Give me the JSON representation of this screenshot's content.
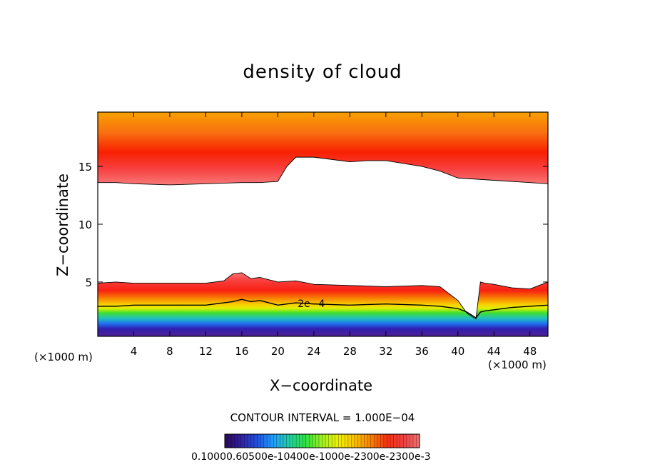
{
  "chart_data": {
    "type": "contour",
    "title": "density of cloud",
    "xlabel": "X−coordinate",
    "ylabel": "Z−coordinate",
    "x_unit_left": "(×1000 m)",
    "x_unit_right": "(×1000 m)",
    "xlim": [
      0,
      50
    ],
    "ylim": [
      0.3,
      19.7
    ],
    "x_ticks": [
      "4",
      "8",
      "12",
      "16",
      "20",
      "24",
      "28",
      "32",
      "36",
      "40",
      "44",
      "48"
    ],
    "x_tick_values": [
      4,
      8,
      12,
      16,
      20,
      24,
      28,
      32,
      36,
      40,
      44,
      48
    ],
    "y_ticks": [
      "5",
      "10",
      "15"
    ],
    "y_tick_values": [
      5,
      10,
      15
    ],
    "contour_label": "2e−4",
    "contour_interval_text": "CONTOUR INTERVAL = 1.000E−04",
    "colorbar_labels_text": "0.10000.60500e-10400e-1000e-2300e-2300e-3",
    "colorbar_stops": [
      "#2a0a5a",
      "#3020a0",
      "#2050e0",
      "#20a0ff",
      "#20d0a0",
      "#30e040",
      "#a0f020",
      "#f0f000",
      "#f8c000",
      "#f88000",
      "#f83010",
      "#f04040",
      "#f07070"
    ],
    "upper_cloud": {
      "x": [
        0,
        2,
        4,
        8,
        12,
        16,
        18,
        20,
        21,
        22,
        24,
        28,
        30,
        32,
        36,
        38,
        40,
        44,
        48,
        50
      ],
      "base_km": [
        13.6,
        13.6,
        13.5,
        13.4,
        13.5,
        13.6,
        13.6,
        13.7,
        15.0,
        15.8,
        15.8,
        15.4,
        15.5,
        15.5,
        15.0,
        14.6,
        14.0,
        13.8,
        13.6,
        13.5
      ]
    },
    "lower_cloud": {
      "x": [
        0,
        2,
        4,
        8,
        12,
        14,
        15,
        16,
        17,
        18,
        20,
        22,
        24,
        28,
        32,
        36,
        38,
        40,
        41,
        42,
        42.5,
        43,
        44,
        46,
        48,
        50
      ],
      "top_km": [
        4.9,
        5.0,
        4.9,
        4.9,
        4.9,
        5.1,
        5.7,
        5.8,
        5.3,
        5.4,
        5.0,
        5.1,
        4.8,
        4.7,
        4.6,
        4.7,
        4.6,
        3.4,
        2.3,
        1.8,
        5.0,
        4.9,
        4.8,
        4.5,
        4.4,
        5.0
      ],
      "contour_2e-4_km": [
        2.9,
        2.9,
        3.0,
        3.0,
        3.0,
        3.2,
        3.3,
        3.5,
        3.3,
        3.4,
        3.0,
        3.2,
        3.1,
        3.0,
        3.1,
        3.0,
        2.9,
        2.7,
        2.4,
        1.9,
        2.4,
        2.5,
        2.6,
        2.8,
        2.9,
        3.0
      ]
    }
  }
}
